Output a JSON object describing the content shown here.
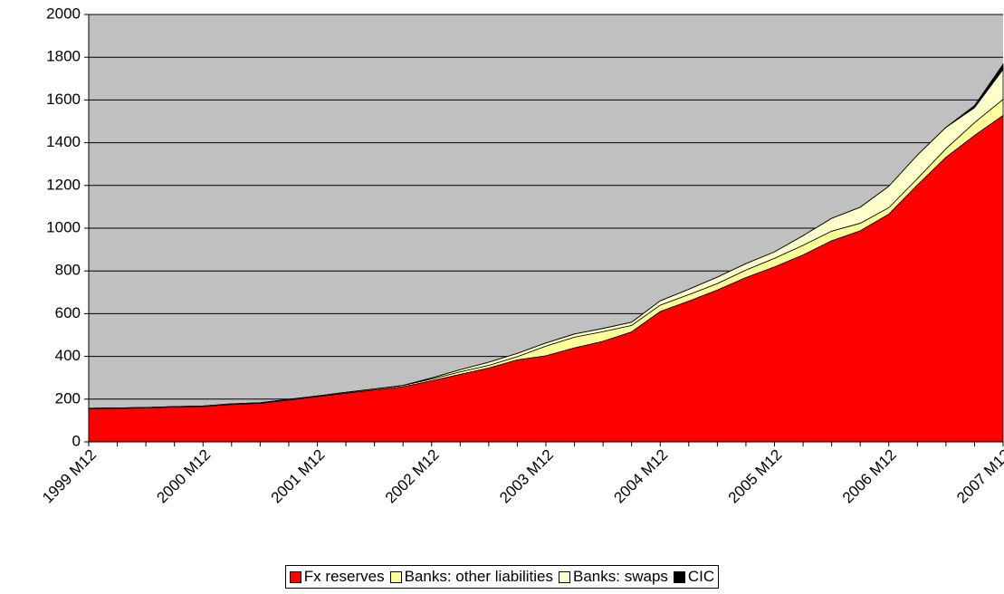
{
  "chart_data": {
    "type": "stacked_area",
    "categories": [
      "1999 M12",
      null,
      null,
      null,
      "2000 M12",
      null,
      null,
      null,
      "2001 M12",
      null,
      null,
      null,
      "2002 M12",
      null,
      null,
      null,
      "2003 M12",
      null,
      null,
      null,
      "2004 M12",
      null,
      null,
      null,
      "2005 M12",
      null,
      null,
      null,
      "2006 M12",
      null,
      null,
      null,
      "2007 M12"
    ],
    "series": [
      {
        "name": "Fx reserves",
        "color": "#ff0000",
        "values": [
          155,
          157,
          159,
          163,
          166,
          175,
          180,
          196,
          212,
          228,
          243,
          258,
          286,
          316,
          346,
          384,
          403,
          440,
          471,
          515,
          610,
          659,
          711,
          769,
          819,
          875,
          941,
          988,
          1066,
          1202,
          1332,
          1434,
          1528
        ]
      },
      {
        "name": "Banks: other liabilities",
        "color": "#ffff99",
        "values": [
          2,
          2,
          2,
          2,
          2,
          3,
          3,
          3,
          3,
          4,
          5,
          6,
          8,
          12,
          12,
          15,
          45,
          50,
          45,
          30,
          30,
          30,
          30,
          35,
          40,
          45,
          45,
          35,
          30,
          30,
          40,
          60,
          75
        ]
      },
      {
        "name": "Banks: swaps",
        "color": "#ffffcc",
        "values": [
          0,
          0,
          0,
          0,
          0,
          0,
          0,
          0,
          0,
          0,
          0,
          0,
          5,
          10,
          15,
          15,
          15,
          15,
          15,
          15,
          20,
          25,
          30,
          30,
          30,
          45,
          60,
          75,
          100,
          110,
          100,
          70,
          140
        ]
      },
      {
        "name": "CIC",
        "color": "#000000",
        "values": [
          0,
          0,
          0,
          0,
          0,
          0,
          0,
          0,
          0,
          0,
          0,
          0,
          0,
          0,
          0,
          0,
          0,
          0,
          0,
          0,
          0,
          0,
          0,
          0,
          0,
          0,
          0,
          0,
          0,
          0,
          0,
          10,
          25
        ]
      }
    ],
    "ylim": [
      0,
      2000
    ],
    "yticks": [
      0,
      200,
      400,
      600,
      800,
      1000,
      1200,
      1400,
      1600,
      1800,
      2000
    ],
    "grid": true,
    "legend": "bottom",
    "plot_background": "#c0c0c0"
  }
}
